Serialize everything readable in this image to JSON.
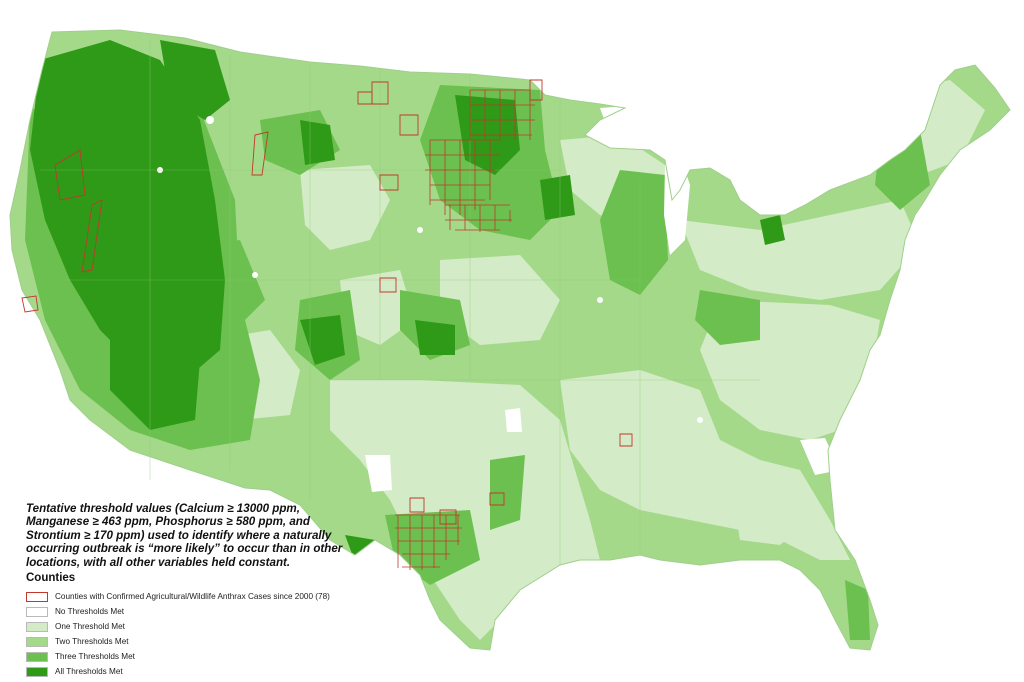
{
  "colors": {
    "none": "#ffffff",
    "one": "#d3ecc7",
    "two": "#a4d98a",
    "three": "#6cc04f",
    "all": "#2f9a17",
    "case_outline": "#c0392b",
    "background": "#ffffff"
  },
  "caption": {
    "lines": [
      "Tentative threshold values (Calcium ≥ 13000 ppm,",
      " Manganese ≥ 463 ppm, Phosphorus ≥ 580 ppm, and",
      "Strontium ≥ 170 ppm) used to identify where a naturally",
      " occurring outbreak is “more likely” to occur than in other",
      " locations, with all other variables held constant."
    ]
  },
  "legend": {
    "title": "Counties",
    "items": [
      {
        "label": "Counties with Confirmed Agricultural/Wildlife Anthrax Cases since 2000 (78)",
        "kind": "outline",
        "color": "#ffffff",
        "border": "#c0392b"
      },
      {
        "label": "No Thresholds Met",
        "kind": "fill",
        "color": "#ffffff",
        "border": "#b9b9b9"
      },
      {
        "label": "One Threshold Met",
        "kind": "fill",
        "color": "#d3ecc7",
        "border": "#b9b9b9"
      },
      {
        "label": "Two Thresholds Met",
        "kind": "fill",
        "color": "#a4d98a",
        "border": "#b9b9b9"
      },
      {
        "label": "Three Thresholds Met",
        "kind": "fill",
        "color": "#6cc04f",
        "border": "#b9b9b9"
      },
      {
        "label": "All Thresholds Met",
        "kind": "fill",
        "color": "#2f9a17",
        "border": "#b9b9b9"
      }
    ]
  }
}
